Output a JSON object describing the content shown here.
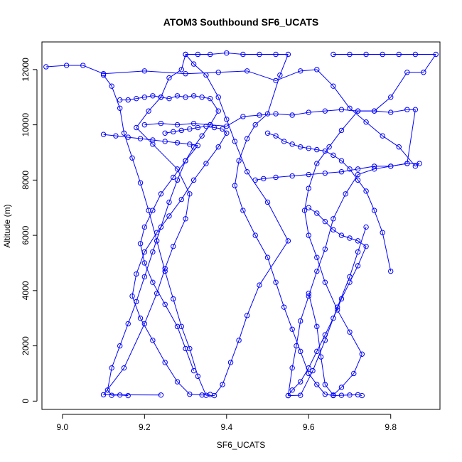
{
  "chart_data": {
    "type": "line",
    "title": "ATOM3 Southbound SF6_UCATS",
    "xlabel": "SF6_UCATS",
    "ylabel": "Altitude (m)",
    "xlim": [
      8.95,
      9.92
    ],
    "ylim": [
      -300,
      13000
    ],
    "x_ticks": [
      9.0,
      9.2,
      9.4,
      9.6,
      9.8
    ],
    "x_tick_labels": [
      "9.0",
      "9.2",
      "9.4",
      "9.6",
      "9.8"
    ],
    "y_ticks": [
      0,
      2000,
      4000,
      6000,
      8000,
      10000,
      12000
    ],
    "y_tick_labels": [
      "0",
      "2000",
      "4000",
      "6000",
      "8000",
      "10000",
      "12000"
    ],
    "grid": false,
    "marker": "open-circle",
    "series_color": "#0000ff",
    "series": [
      {
        "x": [
          9.24,
          9.1,
          9.15,
          9.2,
          9.23,
          9.25,
          9.27,
          9.3,
          9.31,
          9.28,
          9.22,
          9.18,
          9.21,
          9.24,
          9.26,
          9.29,
          9.3,
          9.32,
          9.35,
          9.38,
          9.4,
          9.42,
          9.45,
          9.5,
          9.55,
          9.48,
          9.45,
          9.43,
          9.41,
          9.39,
          9.37,
          9.35,
          9.33,
          9.31,
          9.29,
          9.27,
          9.25,
          9.23,
          9.21,
          9.19,
          9.17,
          9.15,
          9.14,
          9.12,
          9.1
        ],
        "y": [
          220,
          230,
          1200,
          2800,
          3900,
          4800,
          5600,
          6600,
          7500,
          8400,
          9300,
          9900,
          10500,
          11000,
          11700,
          12000,
          12550,
          12200,
          11800,
          11000,
          10200,
          9400,
          8300,
          7200,
          5800,
          4200,
          3100,
          2200,
          1400,
          600,
          200,
          210,
          900,
          1900,
          2700,
          3700,
          4700,
          5800,
          6900,
          7900,
          8800,
          9700,
          10600,
          11400,
          11800
        ]
      },
      {
        "x": [
          8.96,
          9.01,
          9.05,
          9.1,
          9.2,
          9.3,
          9.38,
          9.45,
          9.52,
          9.58,
          9.62,
          9.66,
          9.7,
          9.74,
          9.78,
          9.82,
          9.86,
          9.87,
          9.84,
          9.8,
          9.76,
          9.72,
          9.69,
          9.66,
          9.64,
          9.62,
          9.6,
          9.58,
          9.57,
          9.56,
          9.55,
          9.58,
          9.61,
          9.64,
          9.67,
          9.7,
          9.72,
          9.74
        ],
        "y": [
          12100,
          12150,
          12150,
          11850,
          11950,
          11850,
          11900,
          11950,
          11600,
          11950,
          12000,
          11400,
          10600,
          10100,
          9600,
          9200,
          8500,
          8600,
          8600,
          8500,
          8400,
          8200,
          7500,
          6600,
          5500,
          4700,
          3800,
          2900,
          2000,
          1200,
          200,
          210,
          1100,
          2200,
          3400,
          4500,
          5400,
          6300
        ]
      },
      {
        "x": [
          9.66,
          9.7,
          9.74,
          9.78,
          9.82,
          9.86,
          9.91,
          9.88,
          9.84,
          9.8,
          9.76,
          9.72,
          9.68,
          9.65,
          9.62,
          9.6,
          9.59,
          9.6,
          9.62,
          9.64,
          9.67,
          9.7,
          9.73,
          9.71,
          9.68,
          9.66,
          9.64,
          9.63,
          9.62,
          9.6
        ],
        "y": [
          12550,
          12550,
          12550,
          12550,
          12550,
          12550,
          12550,
          11900,
          11900,
          11000,
          10500,
          10500,
          9800,
          9200,
          8600,
          7700,
          6900,
          6000,
          5200,
          4300,
          3300,
          2500,
          1700,
          1000,
          500,
          220,
          600,
          1600,
          2700,
          3900
        ]
      },
      {
        "x": [
          9.3,
          9.33,
          9.36,
          9.4,
          9.44,
          9.48,
          9.52,
          9.55,
          9.53,
          9.5,
          9.47,
          9.45,
          9.43,
          9.42,
          9.44,
          9.47,
          9.5,
          9.52,
          9.54,
          9.56,
          9.58,
          9.6,
          9.62,
          9.64,
          9.66,
          9.68,
          9.7,
          9.72,
          9.73
        ],
        "y": [
          12550,
          12550,
          12550,
          12600,
          12550,
          12550,
          12550,
          12550,
          11800,
          10400,
          10000,
          9500,
          8700,
          7800,
          6900,
          6000,
          5200,
          4300,
          3400,
          2600,
          1800,
          1000,
          600,
          250,
          200,
          210,
          220,
          230,
          200
        ]
      },
      {
        "x": [
          9.14,
          9.16,
          9.18,
          9.2,
          9.22,
          9.24,
          9.26,
          9.28,
          9.3,
          9.32,
          9.34,
          9.36,
          9.38,
          9.36,
          9.34,
          9.32,
          9.3,
          9.28,
          9.26,
          9.24,
          9.22,
          9.2,
          9.18,
          9.16,
          9.14,
          9.12,
          9.11,
          9.12,
          9.14,
          9.16
        ],
        "y": [
          10900,
          10900,
          10950,
          11000,
          11050,
          11000,
          10950,
          11050,
          11000,
          11050,
          11000,
          10950,
          10500,
          10000,
          9600,
          9200,
          8700,
          8000,
          7200,
          6300,
          5400,
          4500,
          3600,
          2800,
          2000,
          1200,
          400,
          210,
          220,
          200
        ]
      },
      {
        "x": [
          9.2,
          9.24,
          9.28,
          9.32,
          9.36,
          9.4,
          9.44,
          9.48,
          9.52,
          9.56,
          9.6,
          9.64,
          9.68,
          9.72,
          9.76,
          9.8,
          9.84,
          9.86,
          9.84,
          9.8,
          9.76,
          9.72,
          9.68,
          9.64,
          9.6,
          9.56,
          9.52,
          9.49,
          9.47
        ],
        "y": [
          10000,
          10050,
          10000,
          10050,
          10000,
          9950,
          10300,
          10350,
          10400,
          10350,
          10450,
          10500,
          10550,
          10500,
          10500,
          10450,
          10550,
          10550,
          8600,
          8500,
          8500,
          8400,
          8300,
          8250,
          8200,
          8150,
          8100,
          8050,
          8000
        ]
      },
      {
        "x": [
          9.25,
          9.27,
          9.29,
          9.31,
          9.33,
          9.35,
          9.37,
          9.39,
          9.4,
          9.38,
          9.35,
          9.32,
          9.29,
          9.26,
          9.23,
          9.2,
          9.18,
          9.17,
          9.19,
          9.22,
          9.25,
          9.28,
          9.31,
          9.34,
          9.36
        ],
        "y": [
          9700,
          9750,
          9800,
          9850,
          9900,
          9950,
          9900,
          9850,
          9700,
          9200,
          8600,
          8000,
          7300,
          6700,
          6100,
          5400,
          4600,
          3800,
          3000,
          2200,
          1400,
          700,
          250,
          220,
          240
        ]
      },
      {
        "x": [
          9.1,
          9.13,
          9.16,
          9.19,
          9.22,
          9.25,
          9.28,
          9.31,
          9.33,
          9.3,
          9.27,
          9.24,
          9.22,
          9.2,
          9.19,
          9.2,
          9.22,
          9.25,
          9.28,
          9.3,
          9.32
        ],
        "y": [
          9650,
          9600,
          9550,
          9500,
          9450,
          9400,
          9350,
          9300,
          9250,
          8700,
          8100,
          7500,
          6900,
          6300,
          5700,
          5000,
          4300,
          3500,
          2700,
          1900,
          1100
        ]
      },
      {
        "x": [
          9.5,
          9.52,
          9.54,
          9.56,
          9.58,
          9.6,
          9.62,
          9.64,
          9.66,
          9.68,
          9.7,
          9.72,
          9.74,
          9.76,
          9.78,
          9.8
        ],
        "y": [
          9700,
          9600,
          9400,
          9300,
          9200,
          9150,
          9100,
          9050,
          8900,
          8700,
          8400,
          8000,
          7600,
          6900,
          6100,
          4700
        ]
      },
      {
        "x": [
          9.6,
          9.62,
          9.64,
          9.66,
          9.68,
          9.7,
          9.72,
          9.74,
          9.72,
          9.7,
          9.68,
          9.66,
          9.64,
          9.62,
          9.6,
          9.58,
          9.56,
          9.55
        ],
        "y": [
          7000,
          6800,
          6500,
          6200,
          6000,
          5900,
          5800,
          5600,
          4900,
          4300,
          3700,
          3000,
          2400,
          1800,
          1200,
          700,
          400,
          200
        ]
      }
    ]
  }
}
